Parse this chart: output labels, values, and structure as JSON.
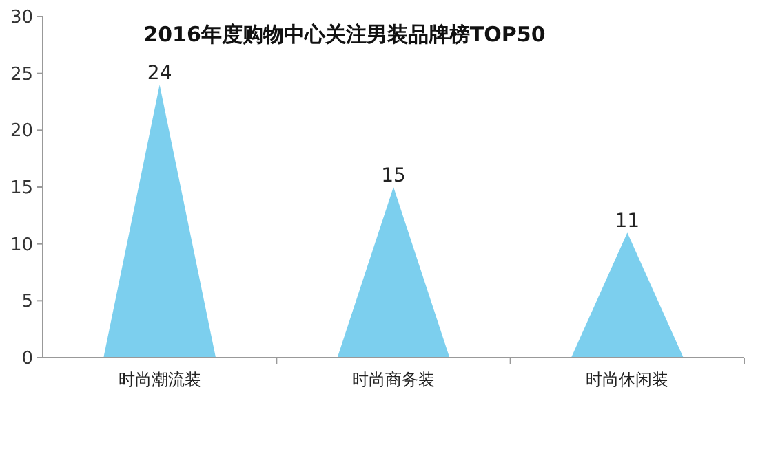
{
  "chart_data": {
    "type": "bar",
    "title": "2016年度购物中心关注男装品牌榜TOP50",
    "categories": [
      "时尚潮流装",
      "时尚商务装",
      "时尚休闲装"
    ],
    "values": [
      24,
      15,
      11
    ],
    "color": "#7ccfee",
    "ylim": [
      0,
      30
    ],
    "yticks": [
      0,
      5,
      10,
      15,
      20,
      25,
      30
    ],
    "data_labels": true,
    "grid": false
  }
}
